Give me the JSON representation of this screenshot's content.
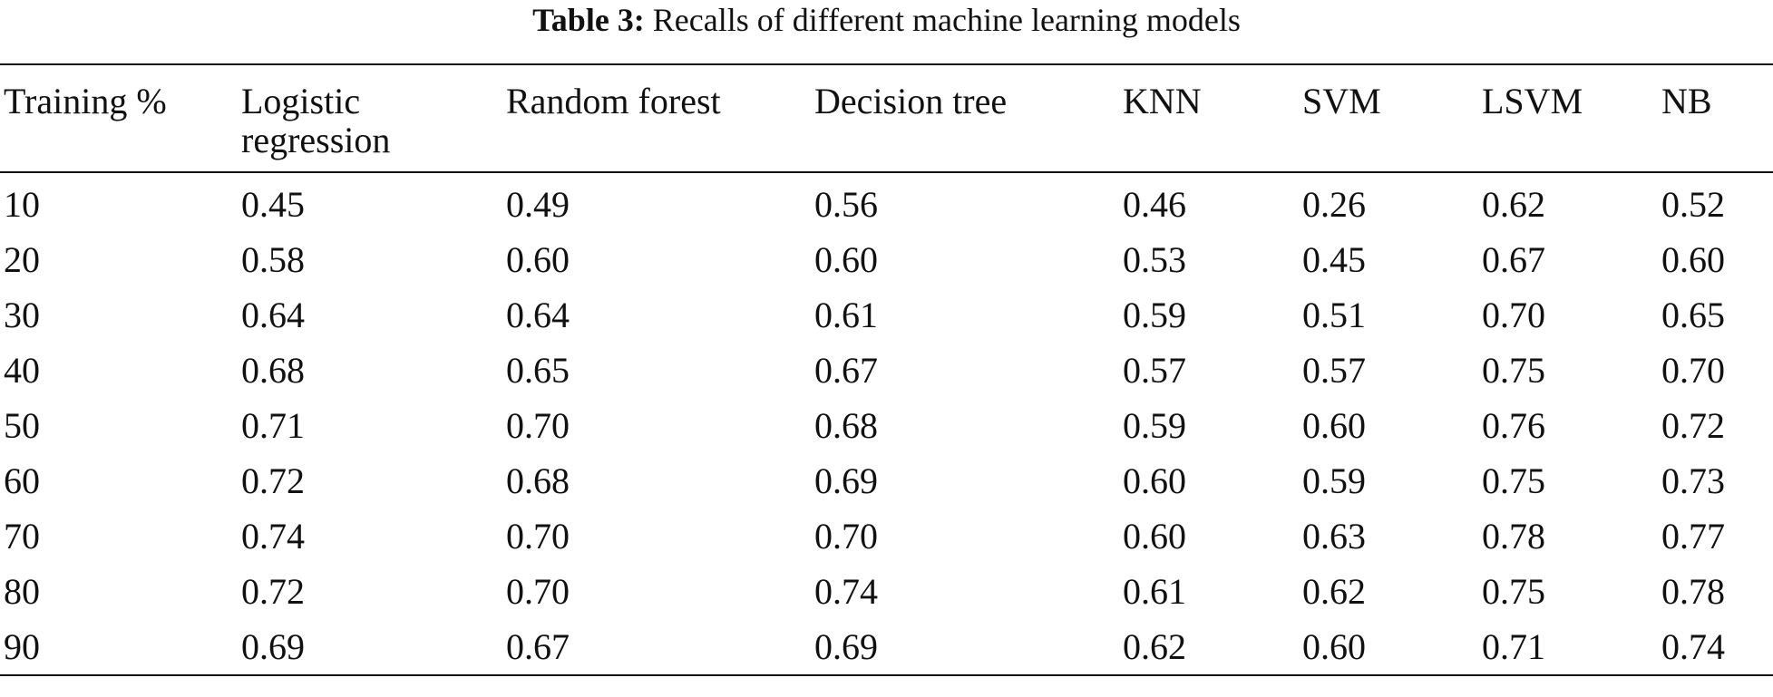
{
  "caption": {
    "label": "Table 3:",
    "text": "Recalls of different machine learning models"
  },
  "table": {
    "headers": [
      "Training %",
      "Logistic regression",
      "Random forest",
      "Decision tree",
      "KNN",
      "SVM",
      "LSVM",
      "NB"
    ],
    "rows": [
      [
        "10",
        "0.45",
        "0.49",
        "0.56",
        "0.46",
        "0.26",
        "0.62",
        "0.52"
      ],
      [
        "20",
        "0.58",
        "0.60",
        "0.60",
        "0.53",
        "0.45",
        "0.67",
        "0.60"
      ],
      [
        "30",
        "0.64",
        "0.64",
        "0.61",
        "0.59",
        "0.51",
        "0.70",
        "0.65"
      ],
      [
        "40",
        "0.68",
        "0.65",
        "0.67",
        "0.57",
        "0.57",
        "0.75",
        "0.70"
      ],
      [
        "50",
        "0.71",
        "0.70",
        "0.68",
        "0.59",
        "0.60",
        "0.76",
        "0.72"
      ],
      [
        "60",
        "0.72",
        "0.68",
        "0.69",
        "0.60",
        "0.59",
        "0.75",
        "0.73"
      ],
      [
        "70",
        "0.74",
        "0.70",
        "0.70",
        "0.60",
        "0.63",
        "0.78",
        "0.77"
      ],
      [
        "80",
        "0.72",
        "0.70",
        "0.74",
        "0.61",
        "0.62",
        "0.75",
        "0.78"
      ],
      [
        "90",
        "0.69",
        "0.67",
        "0.69",
        "0.62",
        "0.60",
        "0.71",
        "0.74"
      ]
    ]
  }
}
